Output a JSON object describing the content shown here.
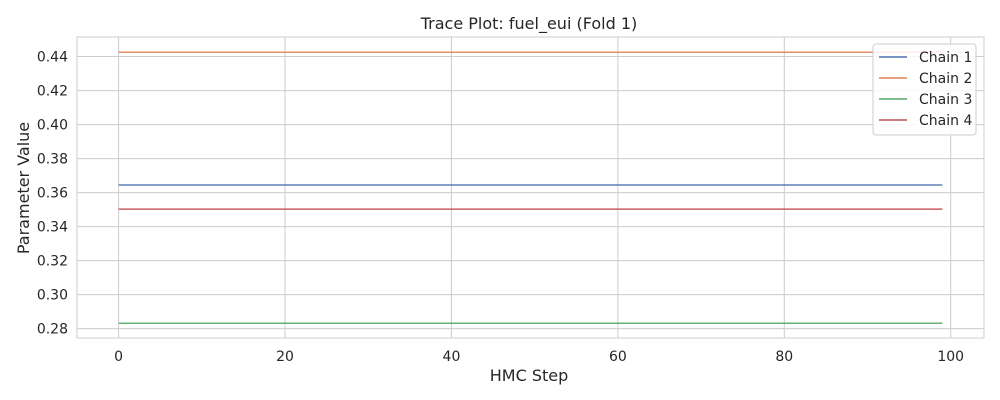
{
  "chart_data": {
    "type": "line",
    "title": "Trace Plot: fuel_eui (Fold 1)",
    "xlabel": "HMC Step",
    "ylabel": "Parameter Value",
    "xlim": [
      -5,
      104
    ],
    "ylim": [
      0.2745,
      0.4515
    ],
    "xticks": [
      0,
      20,
      40,
      60,
      80,
      100
    ],
    "yticks": [
      0.28,
      0.3,
      0.32,
      0.34,
      0.36,
      0.38,
      0.4,
      0.42,
      0.44
    ],
    "ytick_labels": [
      "0.28",
      "0.30",
      "0.32",
      "0.34",
      "0.36",
      "0.38",
      "0.40",
      "0.42",
      "0.44"
    ],
    "grid": true,
    "legend_position": "top-right",
    "x_range": [
      0,
      99
    ],
    "series": [
      {
        "name": "Chain 1",
        "color": "#4c72b0",
        "value": 0.3645
      },
      {
        "name": "Chain 2",
        "color": "#dd8452",
        "value": 0.4425
      },
      {
        "name": "Chain 3",
        "color": "#55a868",
        "value": 0.2832
      },
      {
        "name": "Chain 4",
        "color": "#c44e52",
        "value": 0.3503
      }
    ]
  }
}
